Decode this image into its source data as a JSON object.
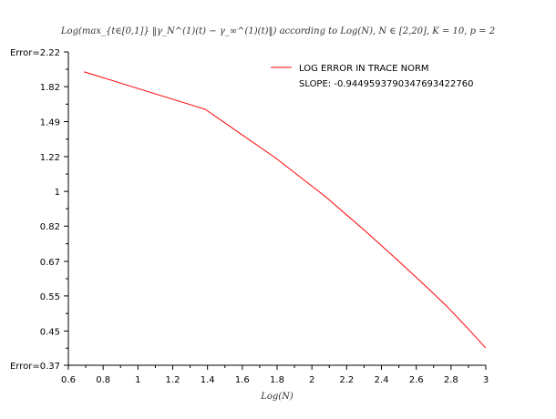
{
  "chart_data": {
    "type": "line",
    "title": "Log(max_{t∈[0,1]} ‖γ_N^(1)(t) − γ_∞^(1)(t)‖) according to Log(N), N ∈ [2,20], K = 10, p = 2",
    "xlabel": "Log(N)",
    "ylabel": "Error",
    "x_ticks": [
      "0.6",
      "0.8",
      "1",
      "1.2",
      "1.4",
      "1.6",
      "1.8",
      "2",
      "2.2",
      "2.4",
      "2.6",
      "2.8",
      "3"
    ],
    "y_ticks": [
      "Error=0.37",
      "0.45",
      "0.55",
      "0.67",
      "0.82",
      "1",
      "1.22",
      "1.49",
      "1.82",
      "Error=2.22"
    ],
    "xlim": [
      0.6,
      3.0
    ],
    "ylim": [
      0.37,
      2.22
    ],
    "y_scale": "log",
    "grid": false,
    "legend_position": "top-right",
    "series": [
      {
        "name": "LOG ERROR IN TRACE NORM",
        "color": "#ff0000",
        "x": [
          0.693,
          1.386,
          1.792,
          2.079,
          2.303,
          2.485,
          2.639,
          2.773,
          2.89,
          2.996
        ],
        "y": [
          1.98,
          1.6,
          1.21,
          0.97,
          0.8,
          0.68,
          0.59,
          0.52,
          0.46,
          0.41
        ]
      }
    ],
    "annotation": "SLOPE: -0.94495937903476934227​60"
  }
}
